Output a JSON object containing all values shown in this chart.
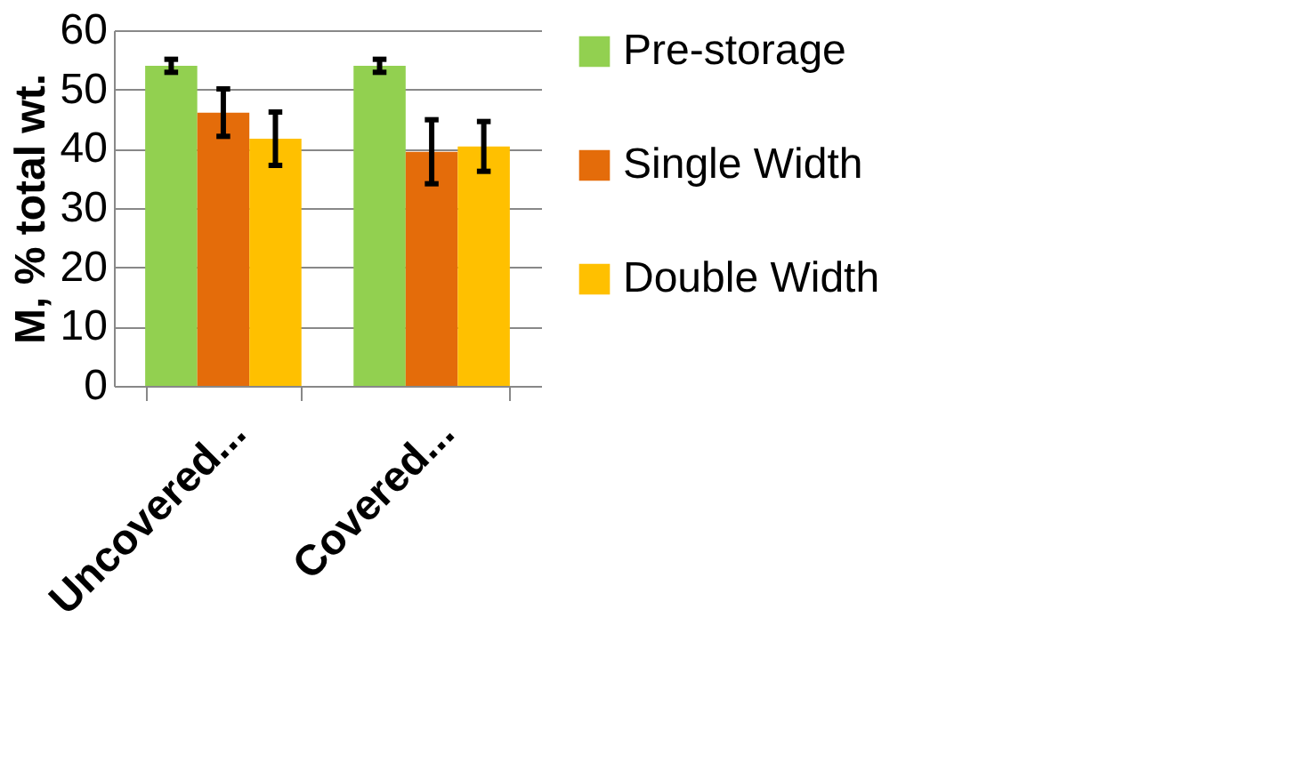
{
  "chart_data": {
    "type": "bar",
    "ylabel": "M, % total wt.",
    "categories": [
      "Uncovered...",
      "Covered..."
    ],
    "series": [
      {
        "name": "Pre-storage",
        "color": "#92d050",
        "values": [
          54,
          54
        ],
        "errors": [
          1.1,
          1.1
        ]
      },
      {
        "name": "Single Width",
        "color": "#e46c0a",
        "values": [
          46.1,
          39.5
        ],
        "errors": [
          4,
          5.4
        ]
      },
      {
        "name": "Double Width",
        "color": "#ffc000",
        "values": [
          41.7,
          40.4
        ],
        "errors": [
          4.5,
          4.2
        ]
      }
    ],
    "ylim": [
      0,
      60
    ],
    "yticks": [
      0,
      10,
      20,
      30,
      40,
      50,
      60
    ],
    "grid": "y",
    "legend": "right"
  }
}
